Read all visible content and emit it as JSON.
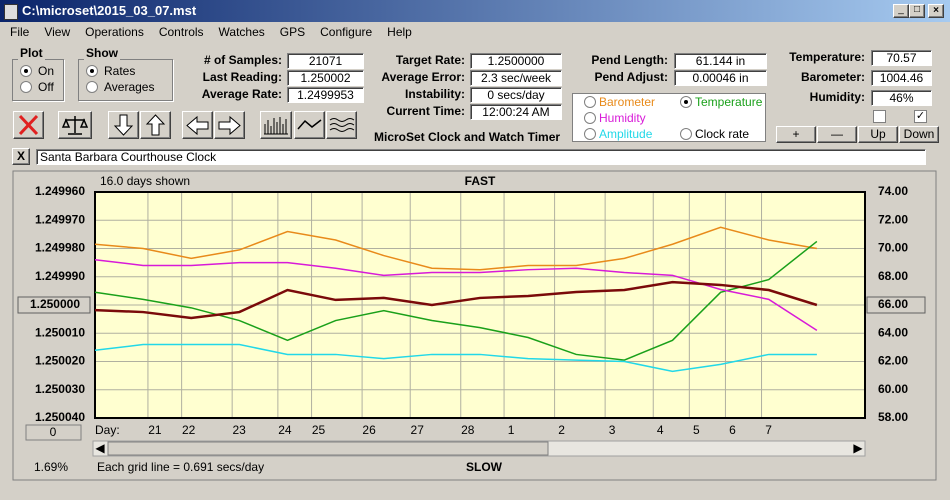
{
  "window": {
    "title": "C:\\microset\\2015_03_07.mst",
    "menu": [
      "File",
      "View",
      "Operations",
      "Controls",
      "Watches",
      "GPS",
      "Configure",
      "Help"
    ],
    "plot_group": {
      "title": "Plot",
      "options": [
        "On",
        "Off"
      ]
    },
    "show_group": {
      "title": "Show",
      "options": [
        "Rates",
        "Averages"
      ]
    },
    "readouts": [
      [
        {
          "label": "# of Samples:",
          "value": "21071"
        },
        {
          "label": "Last Reading:",
          "value": "1.250002"
        },
        {
          "label": "Average Rate:",
          "value": "1.2499953"
        }
      ],
      [
        {
          "label": "Target Rate:",
          "value": "1.2500000"
        },
        {
          "label": "Average Error:",
          "value": "2.3 sec/week"
        },
        {
          "label": "Instability:",
          "value": "0 secs/day"
        },
        {
          "label": "Current Time:",
          "value": "12:00:24 AM"
        }
      ],
      [
        {
          "label": "Pend Length:",
          "value": "61.144 in"
        },
        {
          "label": "Pend Adjust:",
          "value": "0.00046 in"
        }
      ],
      [
        {
          "label": "Temperature:",
          "value": "70.57"
        },
        {
          "label": "Barometer:",
          "value": "1004.46"
        },
        {
          "label": "Humidity:",
          "value": "46%"
        }
      ]
    ],
    "app_name": "MicroSet Clock and Watch Timer",
    "buttons": [
      "+",
      "—",
      "Up",
      "Down"
    ],
    "close_button": "X",
    "clock_name": "Santa Barbara Courthouse Clock"
  },
  "chart_data": {
    "type": "line",
    "days_shown": "16.0 days shown",
    "top_label": "FAST",
    "bottom_label": "SLOW",
    "x_label": "Day:",
    "grid_note": "Each grid line = 0.691 secs/day",
    "zoom": "1.69%",
    "offset": "0",
    "x": [
      0,
      1,
      2,
      3,
      4,
      5,
      6,
      7,
      8,
      9,
      10,
      11,
      12,
      13,
      14,
      15
    ],
    "xlim": [
      0,
      16
    ],
    "xticks": [
      {
        "value": 1.1,
        "label": "21"
      },
      {
        "value": 1.8,
        "label": "22"
      },
      {
        "value": 2.85,
        "label": "23"
      },
      {
        "value": 3.8,
        "label": "24"
      },
      {
        "value": 4.5,
        "label": "25"
      },
      {
        "value": 5.55,
        "label": "26"
      },
      {
        "value": 6.55,
        "label": "27"
      },
      {
        "value": 7.6,
        "label": "28"
      },
      {
        "value": 8.5,
        "label": "1"
      },
      {
        "value": 9.55,
        "label": "2"
      },
      {
        "value": 10.6,
        "label": "3"
      },
      {
        "value": 11.6,
        "label": "4"
      },
      {
        "value": 12.35,
        "label": "5"
      },
      {
        "value": 13.1,
        "label": "6"
      },
      {
        "value": 13.85,
        "label": "7"
      }
    ],
    "ylim": [
      1.25004,
      1.24996
    ],
    "yticks": [
      {
        "value": 1.24996,
        "label": "1.249960"
      },
      {
        "value": 1.24997,
        "label": "1.249970"
      },
      {
        "value": 1.24998,
        "label": "1.249980"
      },
      {
        "value": 1.24999,
        "label": "1.249990"
      },
      {
        "value": 1.25,
        "label": "1.250000"
      },
      {
        "value": 1.25001,
        "label": "1.250010"
      },
      {
        "value": 1.25002,
        "label": "1.250020"
      },
      {
        "value": 1.25003,
        "label": "1.250030"
      },
      {
        "value": 1.25004,
        "label": "1.250040"
      }
    ],
    "y2lim": [
      58,
      74
    ],
    "y2ticks": [
      {
        "value": 74,
        "label": "74.00"
      },
      {
        "value": 72,
        "label": "72.00"
      },
      {
        "value": 70,
        "label": "70.00"
      },
      {
        "value": 68,
        "label": "68.00"
      },
      {
        "value": 66,
        "label": "66.00"
      },
      {
        "value": 64,
        "label": "64.00"
      },
      {
        "value": 62,
        "label": "62.00"
      },
      {
        "value": 60,
        "label": "60.00"
      },
      {
        "value": 58,
        "label": "58.00"
      }
    ],
    "grid": true,
    "series": [
      {
        "name": "Barometer",
        "color": "#e88a1a",
        "axis": "y2",
        "values": [
          70.3,
          70.0,
          69.3,
          69.9,
          71.2,
          70.6,
          69.5,
          68.6,
          68.5,
          68.8,
          68.8,
          69.3,
          70.3,
          71.5,
          70.6,
          70.0
        ]
      },
      {
        "name": "Temperature",
        "color": "#1aa01a",
        "axis": "y2",
        "checked": true,
        "values": [
          66.9,
          66.4,
          65.8,
          64.9,
          63.5,
          64.9,
          65.6,
          64.9,
          64.4,
          63.7,
          62.5,
          62.1,
          63.5,
          66.9,
          67.8,
          70.5
        ]
      },
      {
        "name": "Humidity",
        "color": "#d81ad8",
        "axis": "y2",
        "values": [
          69.2,
          68.8,
          68.8,
          69.0,
          69.0,
          68.6,
          68.1,
          68.3,
          68.3,
          68.5,
          68.6,
          68.3,
          68.1,
          67.1,
          66.4,
          64.2
        ]
      },
      {
        "name": "Amplitude",
        "color": "#22d8e8",
        "axis": "y2",
        "values": [
          62.8,
          63.2,
          63.2,
          63.2,
          62.5,
          62.5,
          62.2,
          62.5,
          62.5,
          62.2,
          62.1,
          62.0,
          61.3,
          61.8,
          62.5,
          62.5
        ]
      },
      {
        "name": "Clock rate",
        "color": "#7a0a0a",
        "values": [
          1.2500018,
          1.2500025,
          1.2500046,
          1.2500025,
          1.2499947,
          1.2499982,
          1.2499975,
          1.25,
          1.2499975,
          1.2499968,
          1.2499954,
          1.2499947,
          1.2499919,
          1.2499929,
          1.2499947,
          1.25
        ]
      }
    ]
  }
}
